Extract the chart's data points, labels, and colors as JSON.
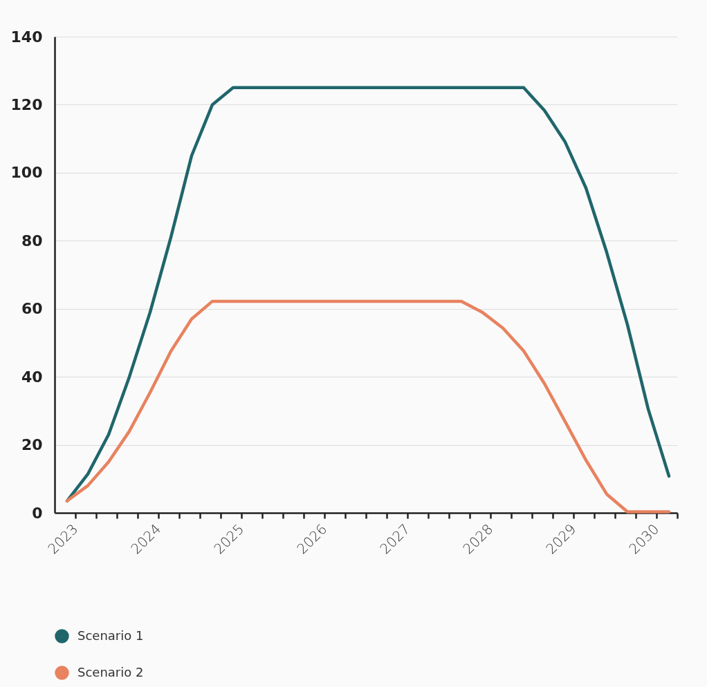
{
  "chart_data": {
    "type": "line",
    "x": [
      2022.9,
      2023.15,
      2023.4,
      2023.65,
      2023.9,
      2024.15,
      2024.4,
      2024.65,
      2024.9,
      2025.15,
      2025.4,
      2025.65,
      2025.9,
      2026.15,
      2026.4,
      2026.65,
      2026.9,
      2027.15,
      2027.4,
      2027.65,
      2027.9,
      2028.15,
      2028.4,
      2028.65,
      2028.9,
      2029.15,
      2029.4,
      2029.65,
      2029.9,
      2030.15
    ],
    "series": [
      {
        "name": "Scenario 1",
        "color": "#1f666b",
        "values": [
          3.5,
          11.4,
          23,
          40,
          59,
          81,
          105,
          120,
          125,
          125,
          125,
          125,
          125,
          125,
          125,
          125,
          125,
          125,
          125,
          125,
          125,
          125,
          125,
          118.3,
          109,
          95.5,
          76.6,
          55.3,
          30.5,
          10.8
        ]
      },
      {
        "name": "Scenario 2",
        "color": "#e8825f",
        "values": [
          3.5,
          8,
          15,
          24,
          35.4,
          47.5,
          57,
          62.2,
          62.2,
          62.2,
          62.2,
          62.2,
          62.2,
          62.2,
          62.2,
          62.2,
          62.2,
          62.2,
          62.2,
          62.2,
          59,
          54.3,
          47.6,
          38,
          26.8,
          15.5,
          5.5,
          0.3,
          0.3,
          0.3
        ]
      }
    ],
    "xlim": [
      2022.75,
      2030.25
    ],
    "xticks": [
      2023,
      {
        "value": 2023.25,
        "label": null
      },
      {
        "value": 2023.5,
        "label": null
      },
      {
        "value": 2023.75,
        "label": null
      },
      2024,
      {
        "value": 2024.25,
        "label": null
      },
      {
        "value": 2024.5,
        "label": null
      },
      {
        "value": 2024.75,
        "label": null
      },
      2025,
      {
        "value": 2025.25,
        "label": null
      },
      {
        "value": 2025.5,
        "label": null
      },
      {
        "value": 2025.75,
        "label": null
      },
      2026,
      {
        "value": 2026.25,
        "label": null
      },
      {
        "value": 2026.5,
        "label": null
      },
      {
        "value": 2026.75,
        "label": null
      },
      2027,
      {
        "value": 2027.25,
        "label": null
      },
      {
        "value": 2027.5,
        "label": null
      },
      {
        "value": 2027.75,
        "label": null
      },
      2028,
      {
        "value": 2028.25,
        "label": null
      },
      {
        "value": 2028.5,
        "label": null
      },
      {
        "value": 2028.75,
        "label": null
      },
      2029,
      {
        "value": 2029.25,
        "label": null
      },
      {
        "value": 2029.5,
        "label": null
      },
      {
        "value": 2029.75,
        "label": null
      },
      2030,
      {
        "value": 2030.25,
        "label": null
      }
    ],
    "ylim": [
      0,
      140
    ],
    "yticks": [
      0,
      20,
      40,
      60,
      80,
      100,
      120,
      140
    ],
    "grid": "y",
    "legend": "bottom left",
    "marker": "none",
    "line_style": "solid"
  }
}
